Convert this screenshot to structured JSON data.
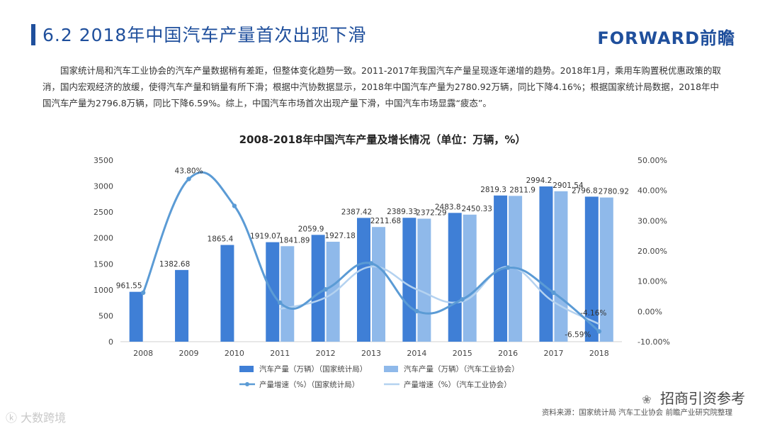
{
  "header": {
    "title": "6.2 2018年中国汽车产量首次出现下滑",
    "brand": "FORWARD前瞻"
  },
  "intro_text": "国家统计局和汽车工业协会的汽车产量数据稍有差距，但整体变化趋势一致。2011-2017年我国汽车产量呈现逐年递增的趋势。2018年1月，乘用车购置税优惠政策的取消，国内宏观经济的放缓，使得汽车产量和销量有所下滑；根据中汽协数据显示，2018年中国汽车产量为2780.92万辆，同比下降4.16%；根据国家统计局数据，2018年中国汽车产量为2796.8万辆，同比下降6.59%。综上，中国汽车市场首次出现产量下滑，中国汽车市场显露“疲态”。",
  "footer": {
    "source": "资料来源：国家统计局  汽车工业协会  前瞻产业研究院整理",
    "watermark_left": "大数跨境",
    "watermark_right": "招商引资参考"
  },
  "colors": {
    "bar_nbs": "#3f7fd6",
    "bar_caam": "#8fb9ea",
    "line_nbs": "#5b9bd5",
    "line_caam": "#b4d2f0",
    "title": "#1f4f9c"
  },
  "chart_data": {
    "type": "bar",
    "title": "2008-2018年中国汽车产量及增长情况（单位：万辆，%）",
    "categories": [
      "2008",
      "2009",
      "2010",
      "2011",
      "2012",
      "2013",
      "2014",
      "2015",
      "2016",
      "2017",
      "2018"
    ],
    "series": [
      {
        "name": "汽车产量（万辆）（国家统计局）",
        "kind": "bar",
        "axis": "left",
        "values": [
          961.55,
          1382.68,
          1865.4,
          1919.07,
          2059.9,
          2387.42,
          2389.33,
          2483.8,
          2819.3,
          2994.2,
          2796.8
        ],
        "labels": [
          "961.55",
          "1382.68",
          "1865.4",
          "1919.07",
          "2059.9",
          "2387.42",
          "2389.33",
          "2483.8",
          "2819.3",
          "2994.2",
          "2796.8"
        ]
      },
      {
        "name": "汽车产量（万辆）（汽车工业协会）",
        "kind": "bar",
        "axis": "left",
        "values": [
          null,
          null,
          null,
          1841.89,
          1927.18,
          2211.68,
          2372.29,
          2450.33,
          2811.9,
          2901.54,
          2780.92
        ],
        "labels": [
          "",
          "",
          "",
          "1841.89",
          "1927.18",
          "2211.68",
          "2372.29",
          "2450.33",
          "2811.9",
          "2901.54",
          "2780.92"
        ]
      },
      {
        "name": "产量增速（%）（国家统计局）",
        "kind": "line",
        "axis": "right",
        "values": [
          6.2,
          43.8,
          34.9,
          2.9,
          7.3,
          15.9,
          0.1,
          4.0,
          14.5,
          6.2,
          -6.59
        ],
        "labels": [
          "",
          "43.80%",
          "",
          "",
          "",
          "",
          "",
          "",
          "",
          "",
          "-6.59%"
        ]
      },
      {
        "name": "产量增速（%）（汽车工业协会）",
        "kind": "line",
        "axis": "right",
        "values": [
          null,
          null,
          null,
          0.8,
          4.6,
          14.8,
          7.3,
          3.3,
          14.8,
          3.2,
          -4.16
        ],
        "labels": [
          "",
          "",
          "",
          "",
          "",
          "",
          "",
          "",
          "",
          "",
          "-4.16%"
        ]
      }
    ],
    "y_left": {
      "min": 0,
      "max": 3500,
      "ticks": [
        "0",
        "500",
        "1000",
        "1500",
        "2000",
        "2500",
        "3000",
        "3500"
      ]
    },
    "y_right": {
      "min": -10,
      "max": 50,
      "ticks": [
        "-10.00%",
        "0.00%",
        "10.00%",
        "20.00%",
        "30.00%",
        "40.00%",
        "50.00%"
      ]
    },
    "legend": {
      "position": "bottom",
      "items": [
        "汽车产量（万辆）（国家统计局）",
        "汽车产量（万辆）（汽车工业协会）",
        "产量增速（%）（国家统计局）",
        "产量增速（%）（汽车工业协会）"
      ]
    }
  }
}
